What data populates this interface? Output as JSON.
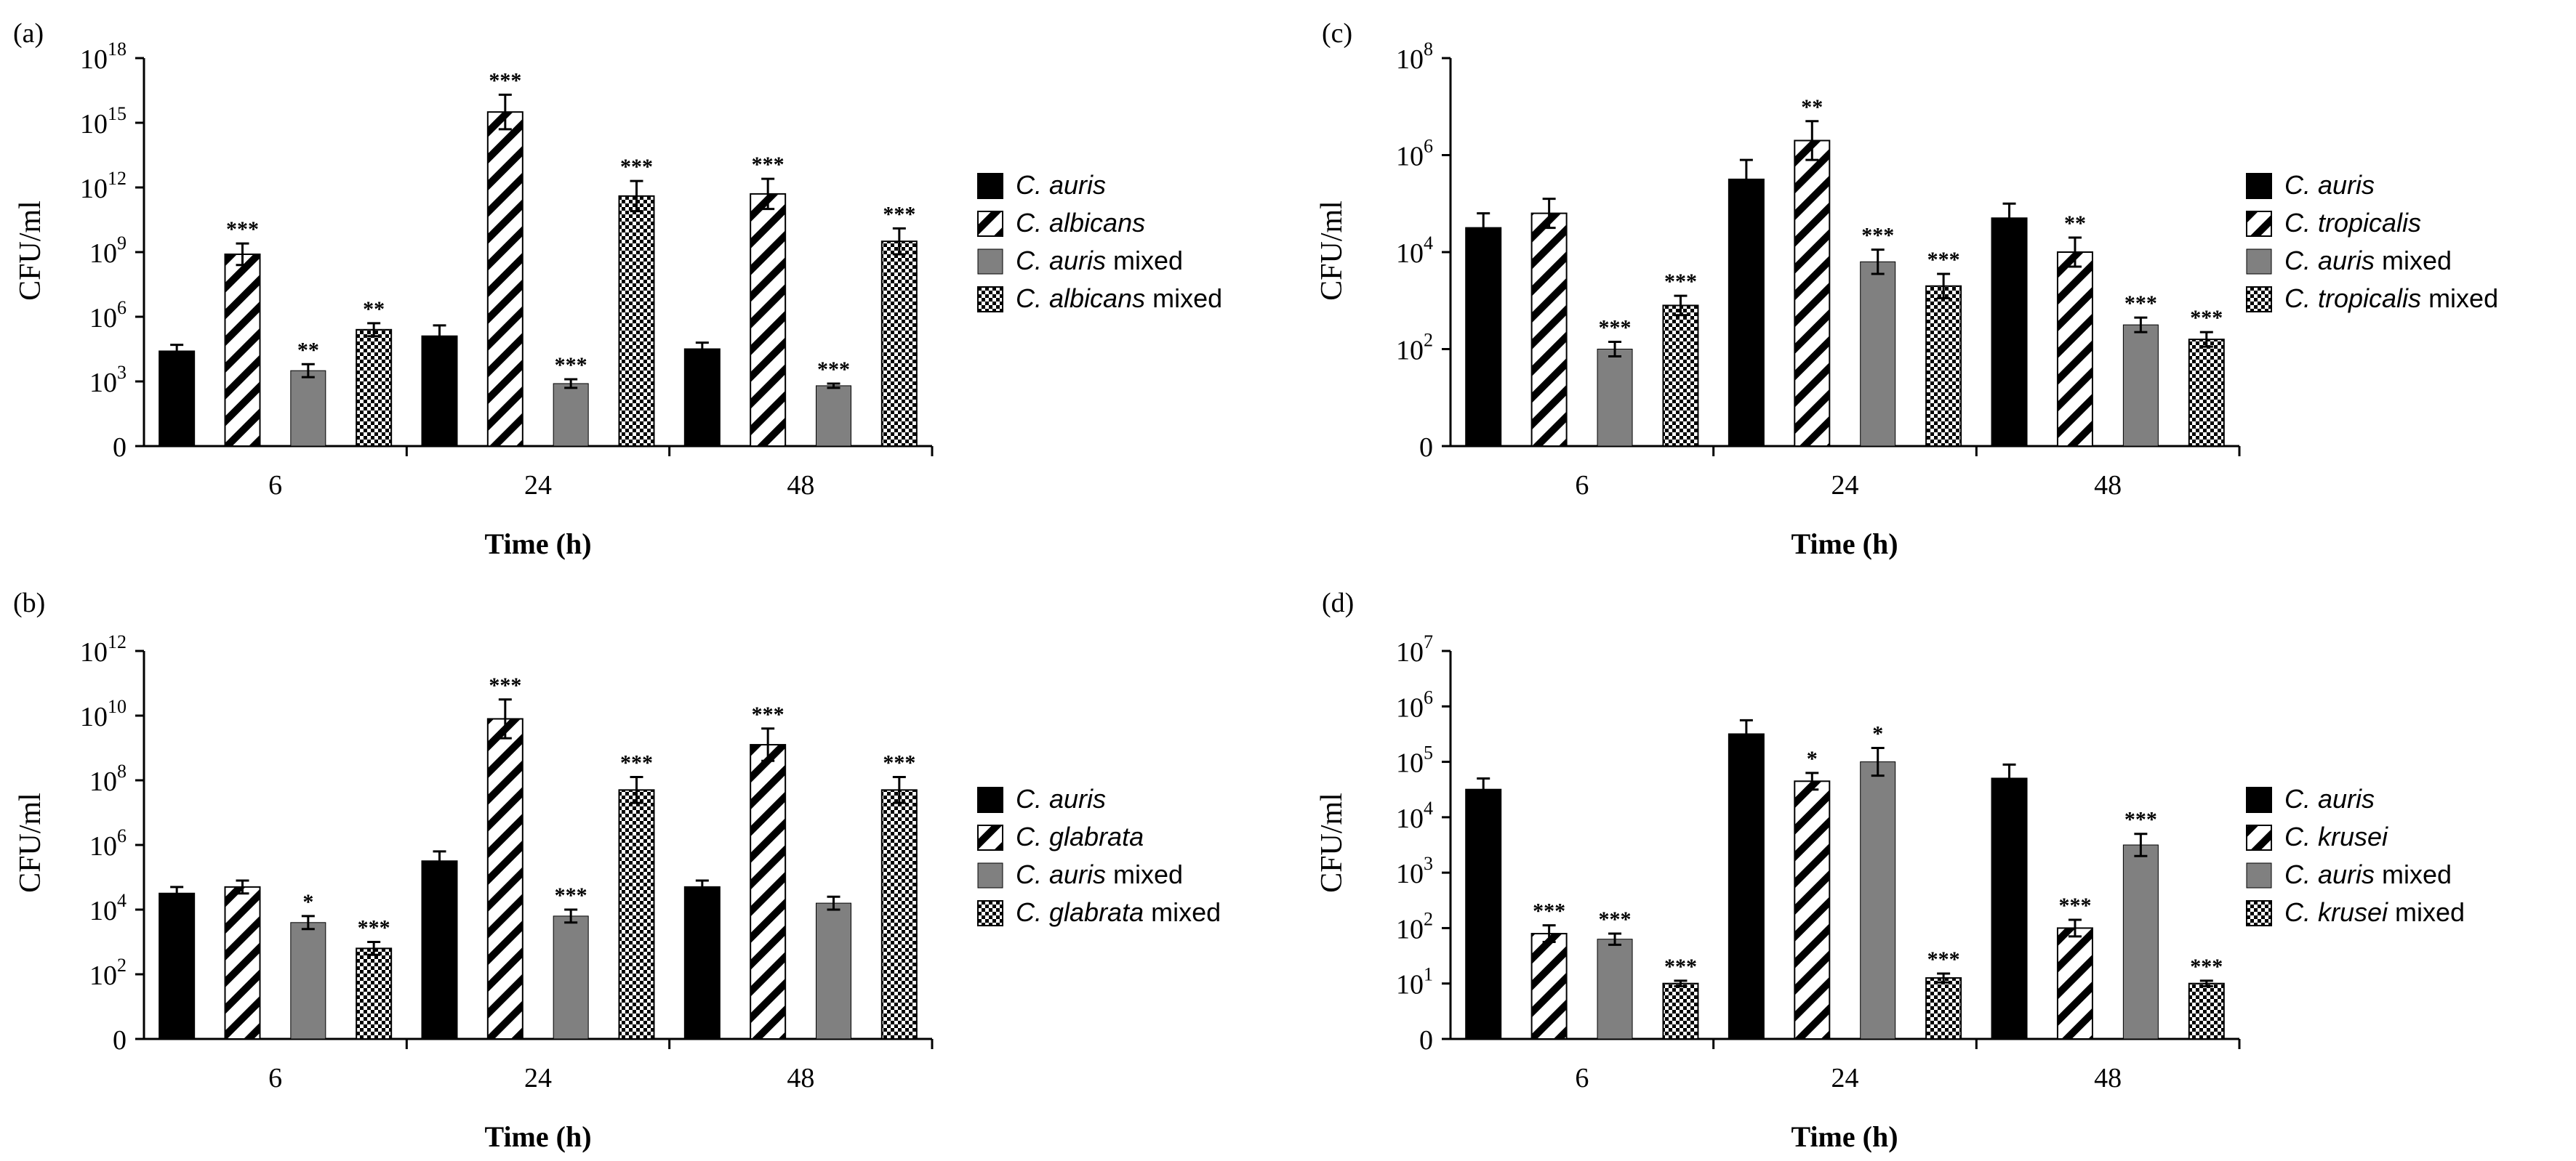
{
  "colors": {
    "auris": "#000000",
    "mixed_auris": "#808080",
    "axis": "#000000"
  },
  "chart_data": [
    {
      "panel": "(a)",
      "type": "bar",
      "categories": [
        "6",
        "24",
        "48"
      ],
      "xlabel": "Time (h)",
      "ylabel": "CFU/ml",
      "yscale": "log",
      "y_ticks": [
        {
          "base": "0",
          "exp": ""
        },
        {
          "base": "10",
          "exp": "3"
        },
        {
          "base": "10",
          "exp": "6"
        },
        {
          "base": "10",
          "exp": "9"
        },
        {
          "base": "10",
          "exp": "12"
        },
        {
          "base": "10",
          "exp": "15"
        },
        {
          "base": "10",
          "exp": "18"
        }
      ],
      "series": [
        {
          "name": "C. auris",
          "legend_italic": "C. auris",
          "legend_suffix": "",
          "style": "solid",
          "log10_values": [
            4.4,
            5.1,
            4.5
          ],
          "log10_err": [
            0.3,
            0.5,
            0.3
          ],
          "sig": [
            "",
            "",
            ""
          ]
        },
        {
          "name": "C. albicans",
          "legend_italic": "C. albicans",
          "legend_suffix": "",
          "style": "hatch",
          "log10_values": [
            8.9,
            15.5,
            11.7
          ],
          "log10_err": [
            0.5,
            0.8,
            0.7
          ],
          "sig": [
            "***",
            "***",
            "***"
          ]
        },
        {
          "name": "C. auris mixed",
          "legend_italic": "C. auris",
          "legend_suffix": " mixed",
          "style": "gray",
          "log10_values": [
            3.5,
            2.9,
            2.8
          ],
          "log10_err": [
            0.3,
            0.2,
            0.1
          ],
          "sig": [
            "**",
            "***",
            "***"
          ]
        },
        {
          "name": "C. albicans mixed",
          "legend_italic": "C. albicans",
          "legend_suffix": " mixed",
          "style": "check",
          "log10_values": [
            5.4,
            11.6,
            9.5
          ],
          "log10_err": [
            0.3,
            0.7,
            0.6
          ],
          "sig": [
            "**",
            "***",
            "***"
          ]
        }
      ]
    },
    {
      "panel": "(b)",
      "type": "bar",
      "categories": [
        "6",
        "24",
        "48"
      ],
      "xlabel": "Time (h)",
      "ylabel": "CFU/ml",
      "yscale": "log",
      "y_ticks": [
        {
          "base": "0",
          "exp": ""
        },
        {
          "base": "10",
          "exp": "2"
        },
        {
          "base": "10",
          "exp": "4"
        },
        {
          "base": "10",
          "exp": "6"
        },
        {
          "base": "10",
          "exp": "8"
        },
        {
          "base": "10",
          "exp": "10"
        },
        {
          "base": "10",
          "exp": "12"
        }
      ],
      "series": [
        {
          "name": "C. auris",
          "legend_italic": "C. auris",
          "legend_suffix": "",
          "style": "solid",
          "log10_values": [
            4.5,
            5.5,
            4.7
          ],
          "log10_err": [
            0.2,
            0.3,
            0.2
          ],
          "sig": [
            "",
            "",
            ""
          ]
        },
        {
          "name": "C. glabrata",
          "legend_italic": "C. glabrata",
          "legend_suffix": "",
          "style": "hatch",
          "log10_values": [
            4.7,
            9.9,
            9.1
          ],
          "log10_err": [
            0.2,
            0.6,
            0.5
          ],
          "sig": [
            "",
            "***",
            "***"
          ]
        },
        {
          "name": "C. auris mixed",
          "legend_italic": "C. auris",
          "legend_suffix": " mixed",
          "style": "gray",
          "log10_values": [
            3.6,
            3.8,
            4.2
          ],
          "log10_err": [
            0.2,
            0.2,
            0.2
          ],
          "sig": [
            "*",
            "***",
            ""
          ]
        },
        {
          "name": "C. glabrata mixed",
          "legend_italic": "C. glabrata",
          "legend_suffix": " mixed",
          "style": "check",
          "log10_values": [
            2.8,
            7.7,
            7.7
          ],
          "log10_err": [
            0.2,
            0.4,
            0.4
          ],
          "sig": [
            "***",
            "***",
            "***"
          ]
        }
      ]
    },
    {
      "panel": "(c)",
      "type": "bar",
      "categories": [
        "6",
        "24",
        "48"
      ],
      "xlabel": "Time (h)",
      "ylabel": "CFU/ml",
      "yscale": "log",
      "y_ticks": [
        {
          "base": "0",
          "exp": ""
        },
        {
          "base": "10",
          "exp": "2"
        },
        {
          "base": "10",
          "exp": "4"
        },
        {
          "base": "10",
          "exp": "6"
        },
        {
          "base": "10",
          "exp": "8"
        }
      ],
      "series": [
        {
          "name": "C. auris",
          "legend_italic": "C. auris",
          "legend_suffix": "",
          "style": "solid",
          "log10_values": [
            4.5,
            5.5,
            4.7
          ],
          "log10_err": [
            0.3,
            0.4,
            0.3
          ],
          "sig": [
            "",
            "",
            ""
          ]
        },
        {
          "name": "C. tropicalis",
          "legend_italic": "C. tropicalis",
          "legend_suffix": "",
          "style": "hatch",
          "log10_values": [
            4.8,
            6.3,
            4.0
          ],
          "log10_err": [
            0.3,
            0.4,
            0.3
          ],
          "sig": [
            "",
            "**",
            "**"
          ]
        },
        {
          "name": "C. auris mixed",
          "legend_italic": "C. auris",
          "legend_suffix": " mixed",
          "style": "gray",
          "log10_values": [
            2.0,
            3.8,
            2.5
          ],
          "log10_err": [
            0.15,
            0.25,
            0.15
          ],
          "sig": [
            "***",
            "***",
            "***"
          ]
        },
        {
          "name": "C. tropicalis mixed",
          "legend_italic": "C. tropicalis",
          "legend_suffix": " mixed",
          "style": "check",
          "log10_values": [
            2.9,
            3.3,
            2.2
          ],
          "log10_err": [
            0.2,
            0.25,
            0.15
          ],
          "sig": [
            "***",
            "***",
            "***"
          ]
        }
      ]
    },
    {
      "panel": "(d)",
      "type": "bar",
      "categories": [
        "6",
        "24",
        "48"
      ],
      "xlabel": "Time (h)",
      "ylabel": "CFU/ml",
      "yscale": "log",
      "y_ticks": [
        {
          "base": "0",
          "exp": ""
        },
        {
          "base": "10",
          "exp": "1"
        },
        {
          "base": "10",
          "exp": "2"
        },
        {
          "base": "10",
          "exp": "3"
        },
        {
          "base": "10",
          "exp": "4"
        },
        {
          "base": "10",
          "exp": "5"
        },
        {
          "base": "10",
          "exp": "6"
        },
        {
          "base": "10",
          "exp": "7"
        }
      ],
      "series": [
        {
          "name": "C. auris",
          "legend_italic": "C. auris",
          "legend_suffix": "",
          "style": "solid",
          "log10_values": [
            4.5,
            5.5,
            4.7
          ],
          "log10_err": [
            0.2,
            0.25,
            0.25
          ],
          "sig": [
            "",
            "",
            ""
          ]
        },
        {
          "name": "C. krusei",
          "legend_italic": "C. krusei",
          "legend_suffix": "",
          "style": "hatch",
          "log10_values": [
            1.9,
            4.65,
            2.0
          ],
          "log10_err": [
            0.15,
            0.15,
            0.15
          ],
          "sig": [
            "***",
            "*",
            "***"
          ]
        },
        {
          "name": "C. auris mixed",
          "legend_italic": "C. auris",
          "legend_suffix": " mixed",
          "style": "gray",
          "log10_values": [
            1.8,
            5.0,
            3.5
          ],
          "log10_err": [
            0.1,
            0.25,
            0.2
          ],
          "sig": [
            "***",
            "*",
            "***"
          ]
        },
        {
          "name": "C. krusei mixed",
          "legend_italic": "C. krusei",
          "legend_suffix": " mixed",
          "style": "check",
          "log10_values": [
            1.0,
            1.1,
            1.0
          ],
          "log10_err": [
            0.05,
            0.08,
            0.05
          ],
          "sig": [
            "***",
            "***",
            "***"
          ]
        }
      ]
    }
  ]
}
